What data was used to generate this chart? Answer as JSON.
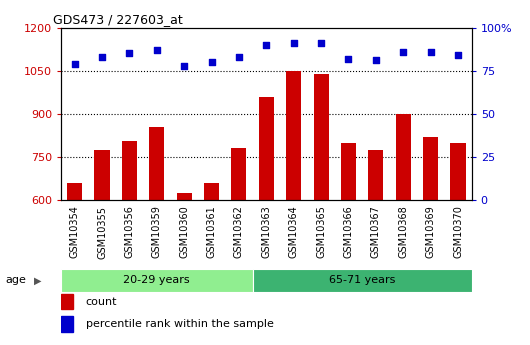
{
  "title": "GDS473 / 227603_at",
  "samples": [
    "GSM10354",
    "GSM10355",
    "GSM10356",
    "GSM10359",
    "GSM10360",
    "GSM10361",
    "GSM10362",
    "GSM10363",
    "GSM10364",
    "GSM10365",
    "GSM10366",
    "GSM10367",
    "GSM10368",
    "GSM10369",
    "GSM10370"
  ],
  "counts": [
    660,
    775,
    805,
    855,
    625,
    660,
    780,
    960,
    1050,
    1040,
    800,
    775,
    900,
    820,
    800
  ],
  "percentile_ranks": [
    79,
    83,
    85,
    87,
    78,
    80,
    83,
    90,
    91,
    91,
    82,
    81,
    86,
    86,
    84
  ],
  "groups": [
    {
      "label": "20-29 years",
      "start": 0,
      "end": 7,
      "color": "#90EE90"
    },
    {
      "label": "65-71 years",
      "start": 7,
      "end": 15,
      "color": "#3CB371"
    }
  ],
  "ylim_left": [
    600,
    1200
  ],
  "ylim_right": [
    0,
    100
  ],
  "yticks_left": [
    600,
    750,
    900,
    1050,
    1200
  ],
  "yticks_right": [
    0,
    25,
    50,
    75,
    100
  ],
  "bar_color": "#CC0000",
  "dot_color": "#0000CC",
  "background_color": "#ffffff",
  "grid_color": "#000000",
  "ylabel_left_color": "#CC0000",
  "ylabel_right_color": "#0000CC",
  "title_color": "#000000",
  "sample_band_color": "#C8C8C8",
  "age_label": "age",
  "legend_count_label": "count",
  "legend_percentile_label": "percentile rank within the sample"
}
